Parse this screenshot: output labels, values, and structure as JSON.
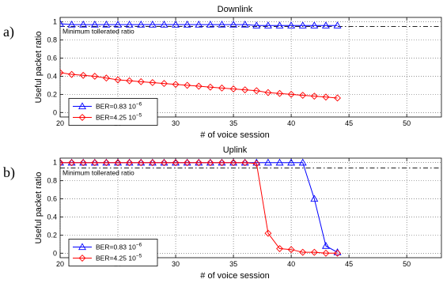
{
  "chart_data": [
    {
      "type": "line",
      "panel_label": "a)",
      "title": "Downlink",
      "xlabel": "# of voice session",
      "ylabel": "Useful packet ratio",
      "xlim": [
        20,
        53
      ],
      "ylim": [
        -0.05,
        1.05
      ],
      "xticks": [
        "20",
        "25",
        "30",
        "35",
        "40",
        "45",
        "50"
      ],
      "yticks": [
        "0",
        "0.2",
        "0.4",
        "0.6",
        "0.8",
        "1"
      ],
      "grid": true,
      "legend_position": "bottom-left",
      "reference_line": {
        "y": 0.95,
        "label": "Minimum tollerated ratio"
      },
      "series": [
        {
          "name": "BER=0.83 10",
          "exponent": "−6",
          "color": "#0000ff",
          "marker": "triangle",
          "x": [
            20,
            21,
            22,
            23,
            24,
            25,
            26,
            27,
            28,
            29,
            30,
            31,
            32,
            33,
            34,
            35,
            36,
            37,
            38,
            39,
            40,
            41,
            42,
            43,
            44
          ],
          "y": [
            0.98,
            0.97,
            0.97,
            0.97,
            0.97,
            0.97,
            0.97,
            0.97,
            0.97,
            0.97,
            0.97,
            0.97,
            0.97,
            0.97,
            0.97,
            0.97,
            0.97,
            0.96,
            0.96,
            0.96,
            0.96,
            0.96,
            0.96,
            0.96,
            0.96
          ]
        },
        {
          "name": "BER=4.25 10",
          "exponent": "−5",
          "color": "#ff0000",
          "marker": "diamond",
          "x": [
            20,
            21,
            22,
            23,
            24,
            25,
            26,
            27,
            28,
            29,
            30,
            31,
            32,
            33,
            34,
            35,
            36,
            37,
            38,
            39,
            40,
            41,
            42,
            43,
            44
          ],
          "y": [
            0.44,
            0.42,
            0.41,
            0.4,
            0.38,
            0.36,
            0.35,
            0.34,
            0.33,
            0.32,
            0.31,
            0.3,
            0.29,
            0.28,
            0.27,
            0.26,
            0.25,
            0.24,
            0.22,
            0.21,
            0.2,
            0.19,
            0.18,
            0.17,
            0.16
          ]
        }
      ]
    },
    {
      "type": "line",
      "panel_label": "b)",
      "title": "Uplink",
      "xlabel": "# of voice session",
      "ylabel": "Useful packet ratio",
      "xlim": [
        20,
        53
      ],
      "ylim": [
        -0.05,
        1.05
      ],
      "xticks": [
        "20",
        "25",
        "30",
        "35",
        "40",
        "45",
        "50"
      ],
      "yticks": [
        "0",
        "0.2",
        "0.4",
        "0.6",
        "0.8",
        "1"
      ],
      "grid": true,
      "legend_position": "bottom-left",
      "reference_line": {
        "y": 0.94,
        "label": "Minimum tollerated ratio"
      },
      "series": [
        {
          "name": "BER=0.83 10",
          "exponent": "−6",
          "color": "#0000ff",
          "marker": "triangle",
          "x": [
            20,
            21,
            22,
            23,
            24,
            25,
            26,
            27,
            28,
            29,
            30,
            31,
            32,
            33,
            34,
            35,
            36,
            37,
            38,
            39,
            40,
            41,
            42,
            43,
            44
          ],
          "y": [
            1,
            1,
            1,
            1,
            1,
            1,
            1,
            1,
            1,
            1,
            1,
            1,
            1,
            1,
            1,
            1,
            1,
            1,
            1,
            1,
            1,
            1,
            0.6,
            0.08,
            0.01
          ]
        },
        {
          "name": "BER=4.25 10",
          "exponent": "−5",
          "color": "#ff0000",
          "marker": "diamond",
          "x": [
            20,
            21,
            22,
            23,
            24,
            25,
            26,
            27,
            28,
            29,
            30,
            31,
            32,
            33,
            34,
            35,
            36,
            37,
            38,
            39,
            40,
            41,
            42,
            43,
            44
          ],
          "y": [
            1,
            1,
            1,
            1,
            1,
            1,
            1,
            1,
            1,
            1,
            1,
            1,
            1,
            1,
            1,
            1,
            1,
            0.99,
            0.22,
            0.05,
            0.04,
            0.01,
            0.01,
            0.0,
            0.0
          ]
        }
      ]
    }
  ]
}
